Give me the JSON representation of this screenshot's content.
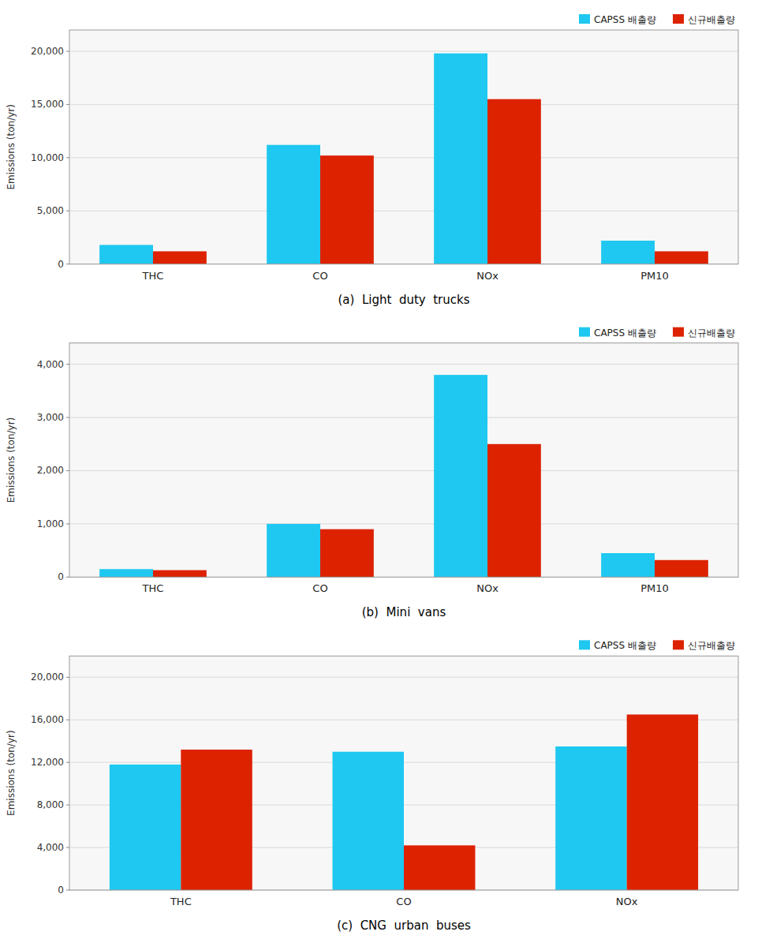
{
  "chart_data": [
    {
      "type": "bar",
      "subtitle": "(a)  Light  duty  trucks",
      "categories": [
        "THC",
        "CO",
        "NOx",
        "PM10"
      ],
      "series": [
        {
          "name": "CAPSS 배출량",
          "color": "#1EC8F0",
          "values": [
            1800,
            11200,
            19800,
            2200
          ]
        },
        {
          "name": "신규배출량",
          "color": "#DD2200",
          "values": [
            1200,
            10200,
            15500,
            1200
          ]
        }
      ],
      "ylabel": "Emissions (ton/yr)",
      "ylim": [
        0,
        22000
      ],
      "yticks": [
        0,
        {
          "value": 5000,
          "label": "5,000"
        },
        {
          "value": 10000,
          "label": "10,000"
        },
        {
          "value": 15000,
          "label": "15,000"
        },
        {
          "value": 20000,
          "label": "20,000"
        }
      ],
      "grid": true,
      "legend": "upper right"
    },
    {
      "type": "bar",
      "subtitle": "(b)  Mini  vans",
      "categories": [
        "THC",
        "CO",
        "NOx",
        "PM10"
      ],
      "series": [
        {
          "name": "CAPSS 배출량",
          "color": "#1EC8F0",
          "values": [
            150,
            1000,
            3800,
            450
          ]
        },
        {
          "name": "신규배출량",
          "color": "#DD2200",
          "values": [
            130,
            900,
            2500,
            320
          ]
        }
      ],
      "ylabel": "Emissions (ton/yr)",
      "ylim": [
        0,
        4400
      ],
      "yticks": [
        0,
        {
          "value": 1000,
          "label": "1,000"
        },
        {
          "value": 2000,
          "label": "2,000"
        },
        {
          "value": 3000,
          "label": "3,000"
        },
        {
          "value": 4000,
          "label": "4,000"
        }
      ],
      "grid": true,
      "legend": "upper right"
    },
    {
      "type": "bar",
      "subtitle": "(c)  CNG  urban  buses",
      "categories": [
        "THC",
        "CO",
        "NOx"
      ],
      "series": [
        {
          "name": "CAPSS 배출량",
          "color": "#1EC8F0",
          "values": [
            11800,
            13000,
            13500
          ]
        },
        {
          "name": "신규배출량",
          "color": "#DD2200",
          "values": [
            13200,
            4200,
            16500
          ]
        }
      ],
      "ylabel": "Emissions (ton/yr)",
      "ylim": [
        0,
        22000
      ],
      "yticks": [
        0,
        {
          "value": 4000,
          "label": "4,000"
        },
        {
          "value": 8000,
          "label": "8,000"
        },
        {
          "value": 12000,
          "label": "12,000"
        },
        {
          "value": 16000,
          "label": "16,000"
        },
        {
          "value": 20000,
          "label": "20,000"
        }
      ],
      "grid": true,
      "legend": "upper right"
    }
  ]
}
